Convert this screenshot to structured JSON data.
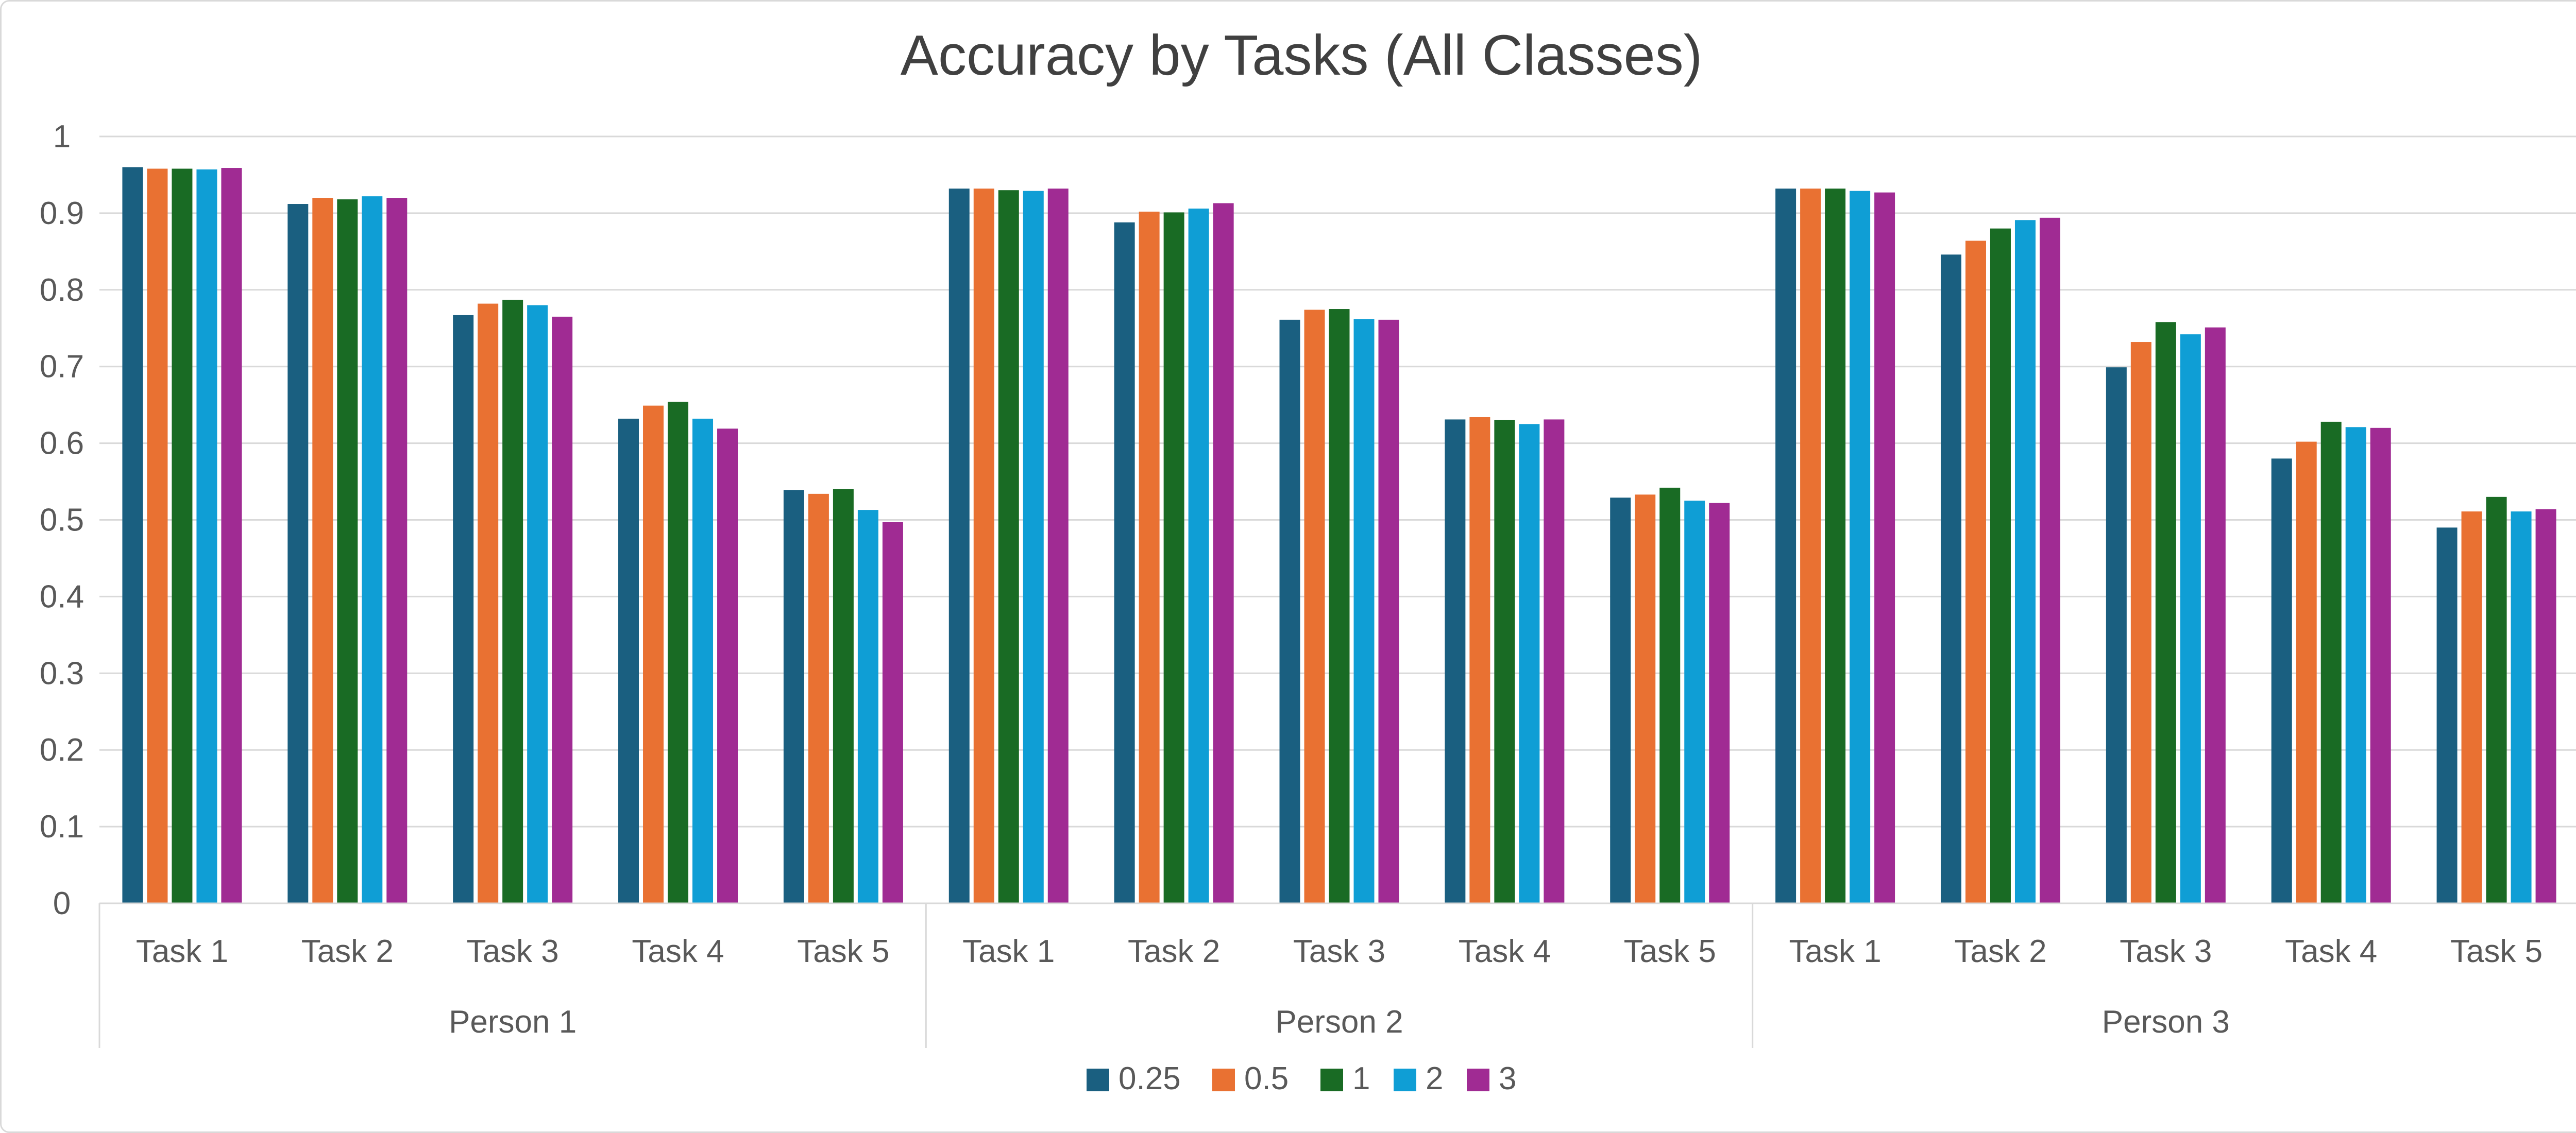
{
  "chart_data": {
    "type": "bar",
    "title": "Accuracy by Tasks (All Classes)",
    "xlabel": "",
    "ylabel": "",
    "ylim": [
      0,
      1
    ],
    "yticks": [
      "0",
      "0.1",
      "0.2",
      "0.3",
      "0.4",
      "0.5",
      "0.6",
      "0.7",
      "0.8",
      "0.9",
      "1"
    ],
    "grid": true,
    "legend": "bottom",
    "groups": [
      {
        "label": "Person 1",
        "categories": [
          "Task 1",
          "Task 2",
          "Task 3",
          "Task 4",
          "Task 5"
        ]
      },
      {
        "label": "Person 2",
        "categories": [
          "Task 1",
          "Task 2",
          "Task 3",
          "Task 4",
          "Task 5"
        ]
      },
      {
        "label": "Person 3",
        "categories": [
          "Task 1",
          "Task 2",
          "Task 3",
          "Task 4",
          "Task 5"
        ]
      }
    ],
    "series": [
      {
        "name": "0.25",
        "color": "#1a5f80",
        "values": [
          0.96,
          0.912,
          0.767,
          0.632,
          0.539,
          0.932,
          0.888,
          0.761,
          0.631,
          0.529,
          0.932,
          0.846,
          0.699,
          0.58,
          0.49
        ]
      },
      {
        "name": "0.5",
        "color": "#e97132",
        "values": [
          0.958,
          0.92,
          0.782,
          0.649,
          0.534,
          0.932,
          0.902,
          0.774,
          0.634,
          0.533,
          0.932,
          0.864,
          0.732,
          0.602,
          0.511
        ]
      },
      {
        "name": "1",
        "color": "#196b24",
        "values": [
          0.958,
          0.918,
          0.787,
          0.654,
          0.54,
          0.93,
          0.901,
          0.775,
          0.63,
          0.542,
          0.932,
          0.88,
          0.758,
          0.628,
          0.53
        ]
      },
      {
        "name": "2",
        "color": "#0f9ed5",
        "values": [
          0.957,
          0.922,
          0.78,
          0.632,
          0.513,
          0.929,
          0.906,
          0.762,
          0.625,
          0.525,
          0.929,
          0.891,
          0.742,
          0.621,
          0.511
        ]
      },
      {
        "name": "3",
        "color": "#a02b93",
        "values": [
          0.959,
          0.92,
          0.765,
          0.619,
          0.497,
          0.932,
          0.913,
          0.761,
          0.631,
          0.522,
          0.927,
          0.894,
          0.751,
          0.62,
          0.514
        ]
      }
    ]
  }
}
